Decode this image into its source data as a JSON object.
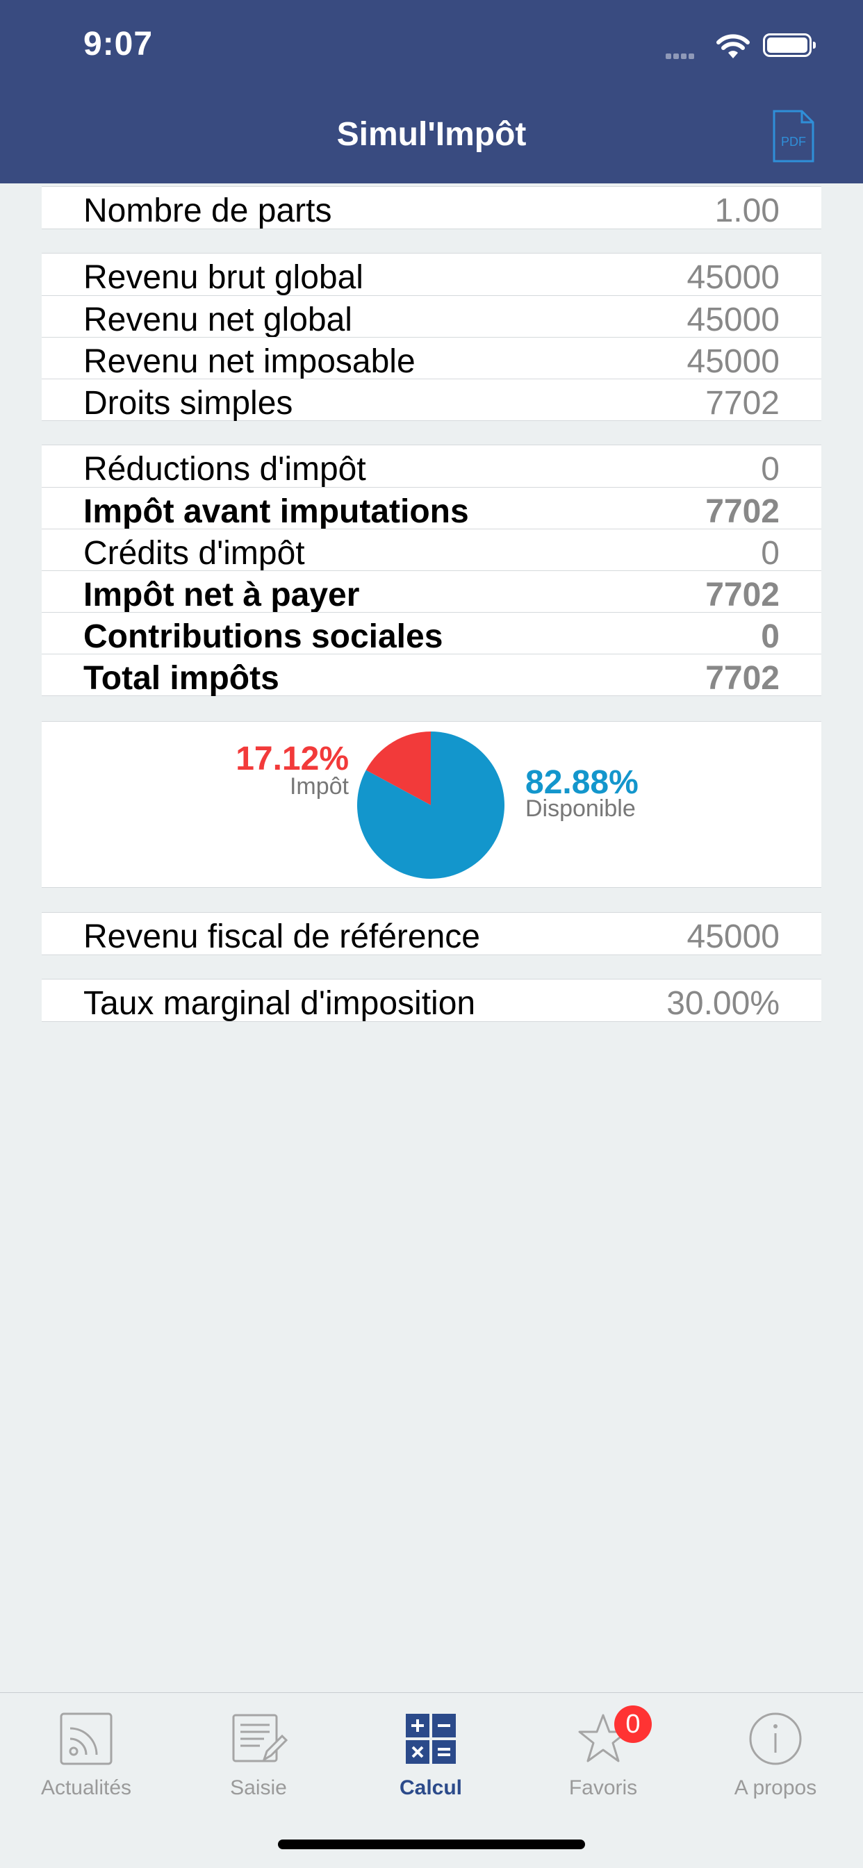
{
  "status_bar": {
    "time": "9:07"
  },
  "header": {
    "title": "Simul'Impôt",
    "pdf_label": "PDF"
  },
  "sections": [
    {
      "rows": [
        {
          "label": "Nombre de parts",
          "value": "1.00",
          "bold": false
        }
      ]
    },
    {
      "rows": [
        {
          "label": "Revenu brut global",
          "value": "45000",
          "bold": false
        },
        {
          "label": "Revenu net global",
          "value": "45000",
          "bold": false
        },
        {
          "label": "Revenu net imposable",
          "value": "45000",
          "bold": false
        },
        {
          "label": "Droits simples",
          "value": "7702",
          "bold": false
        }
      ]
    },
    {
      "rows": [
        {
          "label": "Réductions d'impôt",
          "value": "0",
          "bold": false
        },
        {
          "label": "Impôt avant imputations",
          "value": "7702",
          "bold": true
        },
        {
          "label": "Crédits d'impôt",
          "value": "0",
          "bold": false
        },
        {
          "label": "Impôt net à payer",
          "value": "7702",
          "bold": true
        },
        {
          "label": "Contributions sociales",
          "value": "0",
          "bold": true
        },
        {
          "label": "Total impôts",
          "value": "7702",
          "bold": true
        }
      ]
    }
  ],
  "chart_data": {
    "type": "pie",
    "slices": [
      {
        "label": "Impôt",
        "percent_text": "17.12%",
        "value": 17.12,
        "color": "#F23A3A"
      },
      {
        "label": "Disponible",
        "percent_text": "82.88%",
        "value": 82.88,
        "color": "#1396CC"
      }
    ]
  },
  "sections_after": [
    {
      "rows": [
        {
          "label": "Revenu fiscal de référence",
          "value": "45000",
          "bold": false
        }
      ]
    },
    {
      "rows": [
        {
          "label": "Taux marginal d'imposition",
          "value": "30.00%",
          "bold": false
        }
      ]
    }
  ],
  "tabbar": {
    "tabs": [
      {
        "label": "Actualités",
        "icon": "rss-icon",
        "active": false
      },
      {
        "label": "Saisie",
        "icon": "form-edit-icon",
        "active": false
      },
      {
        "label": "Calcul",
        "icon": "calculator-icon",
        "active": true
      },
      {
        "label": "Favoris",
        "icon": "star-icon",
        "active": false,
        "badge": "0"
      },
      {
        "label": "A propos",
        "icon": "info-icon",
        "active": false
      }
    ]
  },
  "colors": {
    "header": "#394B80",
    "accent": "#2B4A8A",
    "impot": "#F23A3A",
    "disponible": "#1396CC",
    "background": "#ECF0F1"
  }
}
